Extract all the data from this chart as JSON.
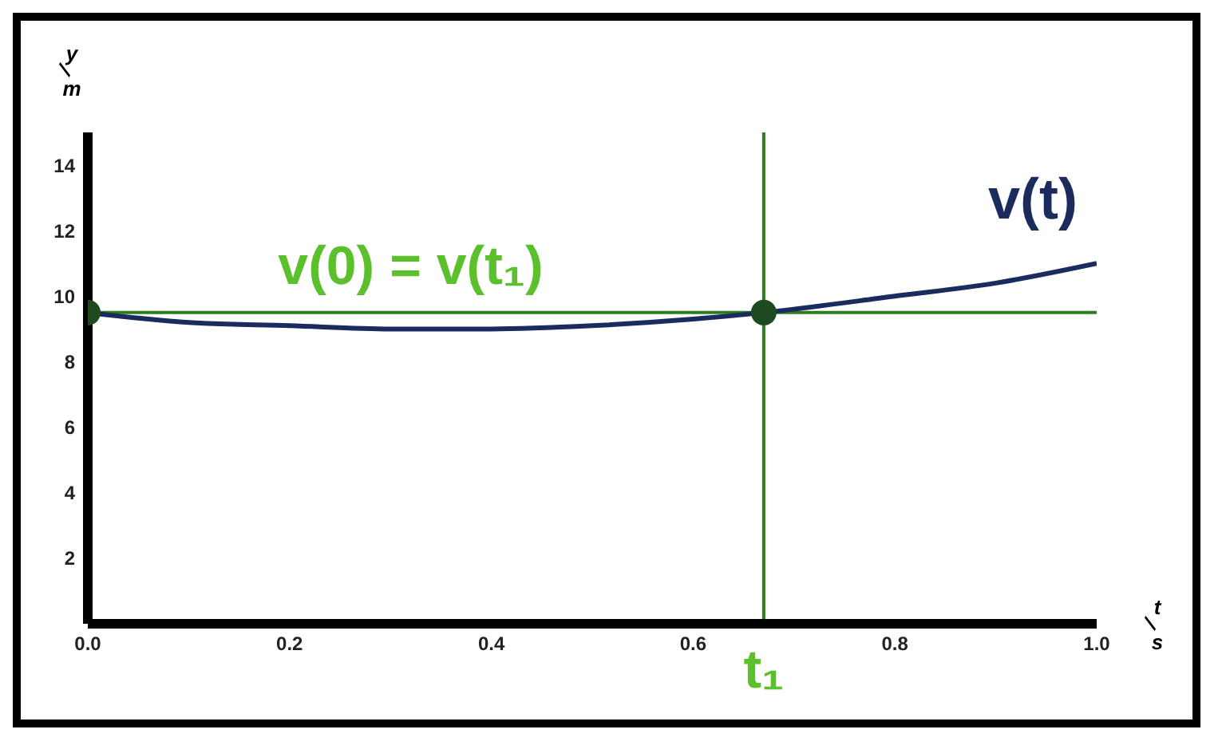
{
  "chart_data": {
    "type": "line",
    "xlabel": "t/s",
    "ylabel": "y/m",
    "xlim": [
      0,
      1
    ],
    "xticks": [
      {
        "value": 0,
        "label": "0.0"
      },
      0.2,
      0.4,
      0.6,
      0.8,
      {
        "value": 1,
        "label": "1.0"
      }
    ],
    "ylim": [
      0,
      15
    ],
    "yticks": [
      2,
      4,
      6,
      8,
      10,
      12,
      14
    ],
    "grid": false,
    "legend": false,
    "series": [
      {
        "name": "v(t)",
        "color": "#1b2b5e",
        "marker": "none",
        "line_style": "solid",
        "x": [
          0,
          0.1,
          0.2,
          0.3,
          0.4,
          0.5,
          0.6,
          0.67,
          0.8,
          0.9,
          1.0
        ],
        "values": [
          9.5,
          9.2,
          9.1,
          9.0,
          9.0,
          9.1,
          9.3,
          9.5,
          10.0,
          10.4,
          11.0
        ]
      },
      {
        "type": "scatter",
        "color": "#1f4a1f",
        "marker": "circle",
        "x": [
          0,
          0.67
        ],
        "values": [
          9.5,
          9.5
        ]
      }
    ],
    "ref_lines": [
      {
        "axis": "y",
        "value": 9.5,
        "label": "v(0) = v(t₁)",
        "color": "#2e7d1e"
      },
      {
        "axis": "x",
        "value": 0.67,
        "label": "t₁",
        "color": "#2e7d1e"
      }
    ]
  }
}
